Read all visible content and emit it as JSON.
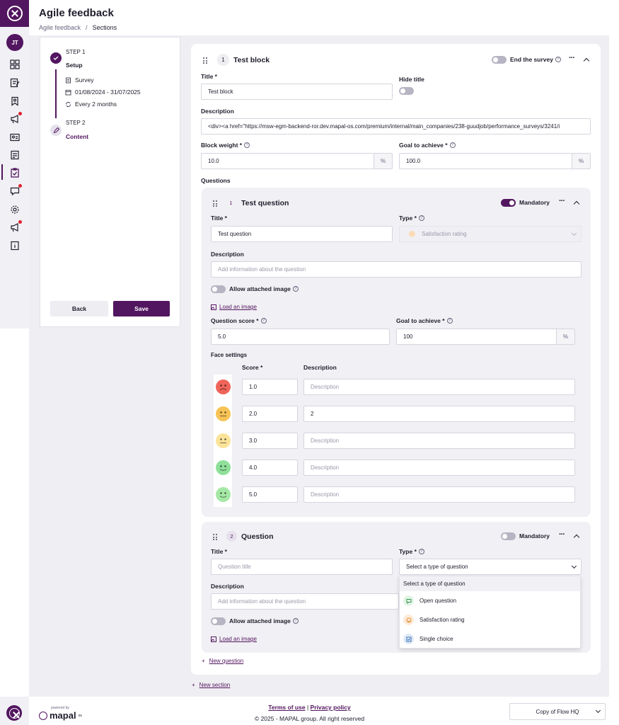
{
  "header": {
    "title": "Agile feedback",
    "breadcrumb": [
      "Agile feedback",
      "Sections"
    ],
    "breadcrumb_sep": "/"
  },
  "rail": {
    "avatar": "JT",
    "icons": [
      "dashboard-icon",
      "edit-icon",
      "bookmark-icon",
      "megaphone-icon",
      "id-card-icon",
      "document-icon",
      "survey-icon",
      "chat-icon",
      "settings-icon",
      "megaphone-icon",
      "info-icon"
    ]
  },
  "steps": {
    "step1": {
      "label": "STEP 1",
      "name": "Setup",
      "items": [
        "Survey",
        "01/08/2024 - 31/07/2025",
        "Every 2 months"
      ]
    },
    "step2": {
      "label": "STEP 2",
      "name": "Content"
    },
    "back": "Back",
    "save": "Save"
  },
  "block": {
    "number": "1",
    "title": "Test block",
    "end_survey": "End the survey",
    "title_label": "Title *",
    "title_value": "Test block",
    "hide_title": "Hide title",
    "description_label": "Description",
    "description_value": "<div><a href=\"https://msw-egm-backend-ror.dev.mapal-os.com/premium/internal/main_companies/238-guudjob/performance_surveys/3241/i",
    "weight_label": "Block weight *",
    "weight_value": "10.0",
    "goal_label": "Goal to achieve *",
    "goal_value": "100.0",
    "pct": "%",
    "questions_label": "Questions"
  },
  "q1": {
    "number": "1",
    "title": "Test question",
    "mandatory": "Mandatory",
    "title_label": "Title *",
    "title_value": "Test question",
    "type_label": "Type *",
    "type_value": "Satisfaction rating",
    "description_label": "Description",
    "description_placeholder": "Add information about the question",
    "allow_image": "Allow attached image",
    "load_image": "Load an image",
    "score_label": "Question score *",
    "score_value": "5.0",
    "goal_label": "Goal to achieve *",
    "goal_value": "100",
    "pct": "%",
    "face_settings": "Face settings",
    "score_col": "Score *",
    "desc_col": "Description",
    "faces": [
      {
        "score": "1.0",
        "description": "",
        "placeholder": "Description",
        "color": "#f0645a"
      },
      {
        "score": "2.0",
        "description": "2",
        "placeholder": "Description",
        "color": "#f7c356"
      },
      {
        "score": "3.0",
        "description": "",
        "placeholder": "Description",
        "color": "#fbe49a"
      },
      {
        "score": "4.0",
        "description": "",
        "placeholder": "Description",
        "color": "#8fe09a"
      },
      {
        "score": "5.0",
        "description": "",
        "placeholder": "Description",
        "color": "#a5e8a5"
      }
    ]
  },
  "q2": {
    "number": "2",
    "title": "Question",
    "mandatory": "Mandatory",
    "title_label": "Title *",
    "title_placeholder": "Question title",
    "type_label": "Type *",
    "type_value": "Select a type of question",
    "description_label": "Description",
    "description_placeholder": "Add information about the question",
    "allow_image": "Allow attached image",
    "load_image": "Load an image"
  },
  "dropdown": {
    "header": "Select a type of question",
    "options": [
      {
        "label": "Open question",
        "icon": "chat-bubble-icon",
        "color": "#e2f4e6"
      },
      {
        "label": "Satisfaction rating",
        "icon": "smiley-icon",
        "color": "#fdebd9"
      },
      {
        "label": "Single choice",
        "icon": "checkbox-icon",
        "color": "#dfeaf7"
      }
    ]
  },
  "new_question": "New question",
  "new_section": "New section",
  "footer": {
    "powered_by": "powered by",
    "brand": "mapal",
    "brand_sup": "os",
    "terms": "Terms of use",
    "sep": "|",
    "privacy": "Privacy policy",
    "copyright": "© 2025 - MAPAL group. All right reserved",
    "site": "Copy of Flow HQ"
  },
  "colors": {
    "brand": "#52155f",
    "badge": "#e0202e"
  }
}
